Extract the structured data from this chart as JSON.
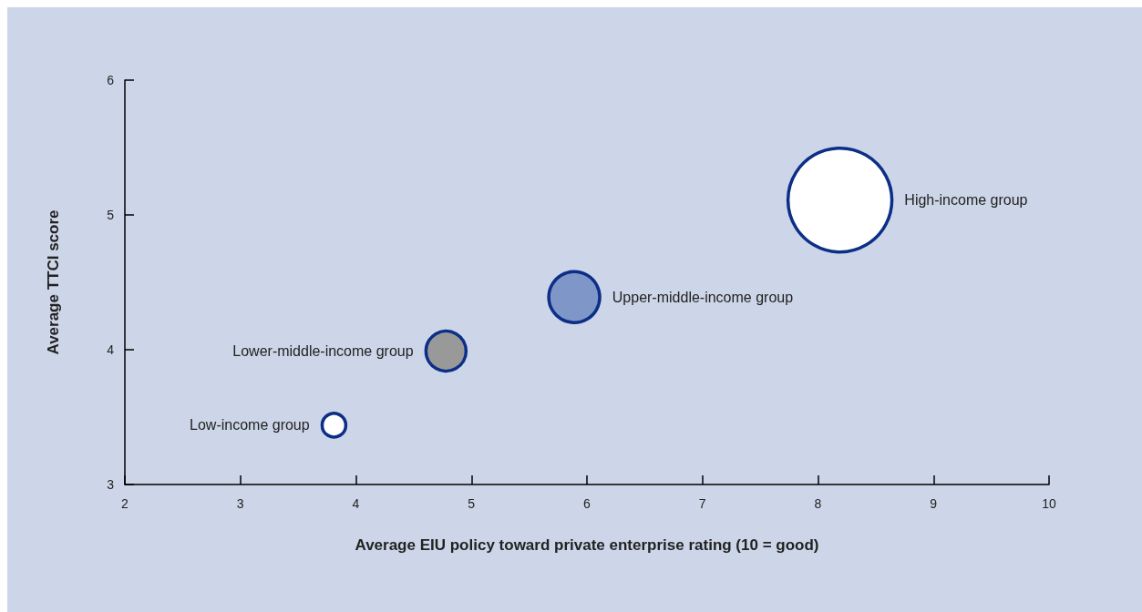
{
  "chart_data": {
    "type": "bubble",
    "xlabel": "Average EIU policy toward private enterprise rating (10 = good)",
    "ylabel": "Average TTCI score",
    "xlim": [
      2,
      10
    ],
    "xticks": [
      2,
      3,
      4,
      5,
      6,
      7,
      8,
      9,
      10
    ],
    "ylim": [
      3,
      6
    ],
    "yticks": [
      3,
      4,
      5,
      6
    ],
    "grid": false,
    "legend": false,
    "series": [
      {
        "name": "Low-income group",
        "color": "#ffffff",
        "x": [
          3.81
        ],
        "values": [
          3.44
        ],
        "sizes": [
          0.052
        ]
      },
      {
        "name": "Lower-middle-income group",
        "color": "#999999",
        "x": [
          4.78
        ],
        "values": [
          3.99
        ],
        "sizes": [
          0.149
        ]
      },
      {
        "name": "Upper-middle-income group",
        "color": "#7f96c8",
        "x": [
          5.89
        ],
        "values": [
          4.39
        ],
        "sizes": [
          0.241
        ]
      },
      {
        "name": "High-income group",
        "color": "#ffffff",
        "x": [
          8.19
        ],
        "values": [
          5.11
        ],
        "sizes": [
          1
        ]
      }
    ]
  }
}
